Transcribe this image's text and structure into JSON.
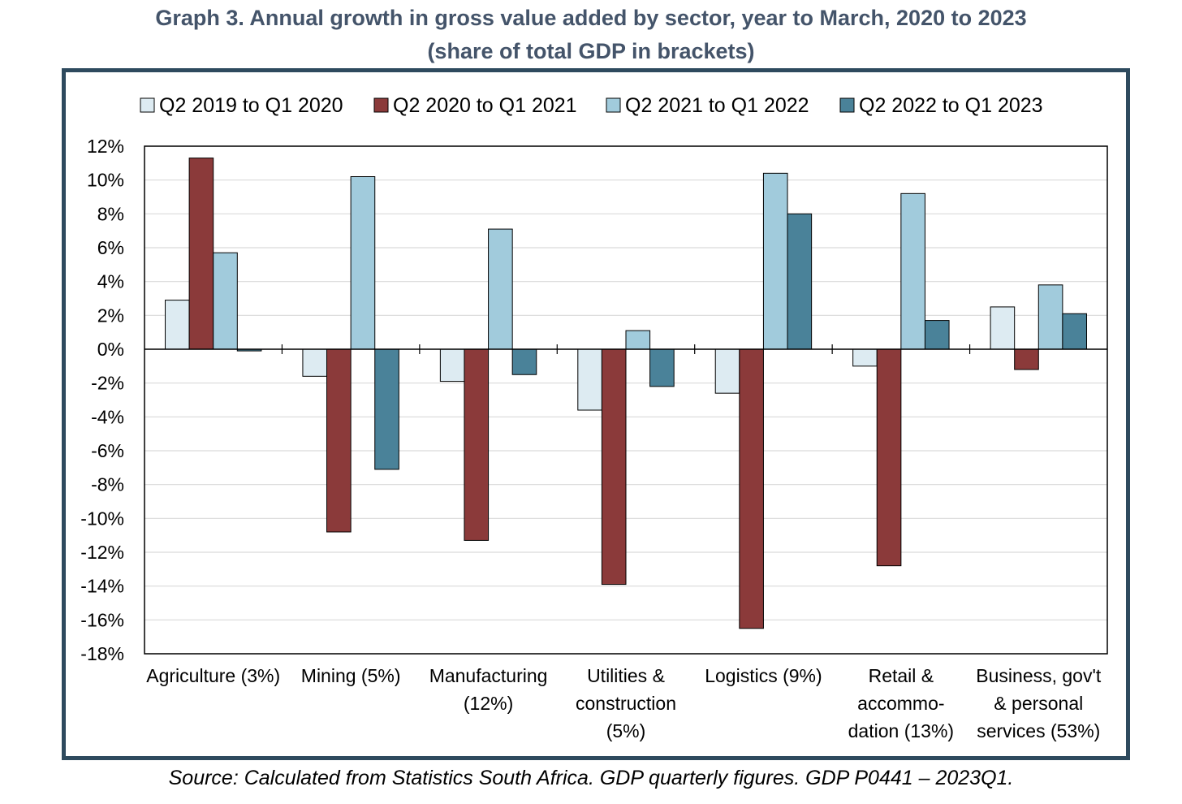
{
  "title": {
    "line1": "Graph 3. Annual growth in gross value added by sector, year to March, 2020 to 2023",
    "line2": "(share of total GDP in brackets)"
  },
  "source": "Source: Calculated from Statistics South Africa. GDP quarterly figures. GDP P0441 – 2023Q1.",
  "chart_data": {
    "type": "bar",
    "categories": [
      [
        "Agriculture (3%)"
      ],
      [
        "Mining (5%)"
      ],
      [
        "Manufacturing",
        "(12%)"
      ],
      [
        "Utilities &",
        "construction",
        "(5%)"
      ],
      [
        "Logistics (9%)"
      ],
      [
        "Retail &",
        "accommo-",
        "dation (13%)"
      ],
      [
        "Business, gov't",
        "& personal",
        "services (53%)"
      ]
    ],
    "series": [
      {
        "name": "Q2 2019 to Q1 2020",
        "color": "#ddebf2",
        "values": [
          2.9,
          -1.6,
          -1.9,
          -3.6,
          -2.6,
          -1.0,
          2.5
        ]
      },
      {
        "name": "Q2 2020 to Q1 2021",
        "color": "#8b3a3a",
        "values": [
          11.3,
          -10.8,
          -11.3,
          -13.9,
          -16.5,
          -12.8,
          -1.2
        ]
      },
      {
        "name": "Q2 2021 to Q1 2022",
        "color": "#a1cbdc",
        "values": [
          5.7,
          10.2,
          7.1,
          1.1,
          10.4,
          9.2,
          3.8
        ]
      },
      {
        "name": "Q2 2022 to Q1 2023",
        "color": "#4a8299",
        "values": [
          -0.1,
          -7.1,
          -1.5,
          -2.2,
          8.0,
          1.7,
          2.1
        ]
      }
    ],
    "ylim": [
      -18,
      12
    ],
    "yticks": [
      "12%",
      "10%",
      "8%",
      "6%",
      "4%",
      "2%",
      "0%",
      "-2%",
      "-4%",
      "-6%",
      "-8%",
      "-10%",
      "-12%",
      "-14%",
      "-16%",
      "-18%"
    ],
    "grid": true,
    "legend": "top"
  }
}
